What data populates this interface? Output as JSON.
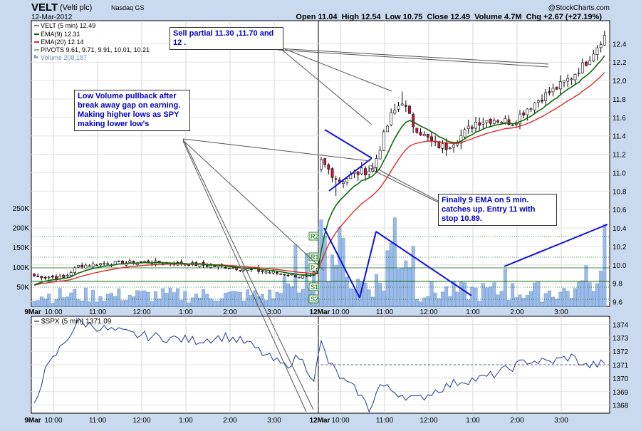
{
  "header": {
    "symbol": "VELT",
    "company": "(Velti plc)",
    "exchange": "Nasdaq GS",
    "date": "12-Mar-2012",
    "copyright": "@StockCharts.com",
    "ohlc_text": "Open 11.04  High 12.54  Low 10.75  Close 12.49  Volume 4.7M  Chg +2.67 (+27.19%)",
    "chg_arrow": "▲"
  },
  "legend": {
    "main": "VELT (5 min) 12.49",
    "ema9": "EMA(9) 12.31",
    "ema20": "EMA(20) 12.14",
    "pivots": "PIVOTS 9.61, 9.71, 9.91, 10.01, 10.21",
    "volume": "Volume 208,187"
  },
  "spx_label": "$SPX (5 min) 1371.09",
  "annotations": {
    "sell": "Sell partial 11.30 ,11.70 and 12 .",
    "pullback": "Low Volume pullback after break away gap on earning. Making higher lows as SPY making lower low's",
    "ema": "Finally 9 EMA on 5 min. catches up. Entry 11 with stop 10.89."
  },
  "colors": {
    "background": "#c9d9ee",
    "panel": "#ffffff",
    "up_candle": "#ffffff",
    "down_candle": "#d0143c",
    "ema9": "#0a6b0a",
    "ema20": "#e02828",
    "volume": "#9bbcea",
    "trendline": "#1010e0",
    "annotation_text": "#0000c8"
  },
  "chart_data": [
    {
      "type": "candlestick",
      "title": "VELT (5 min)",
      "ylim": [
        9.55,
        12.65
      ],
      "y_ticks": [
        "9.6",
        "9.8",
        "10.0",
        "10.2",
        "10.4",
        "10.6",
        "10.8",
        "11.0",
        "11.2",
        "11.4",
        "11.6",
        "11.8",
        "12.0",
        "12.2",
        "12.4"
      ],
      "x_ticks": [
        "9Mar",
        "10:00",
        "11:00",
        "12:00",
        "1:00",
        "2:00",
        "3:00",
        "12Mar",
        "10:00",
        "11:00",
        "12:00",
        "1:00",
        "2:00",
        "3:00"
      ],
      "pivot_labels": [
        "R2",
        "R1",
        "P",
        "S1",
        "S2"
      ],
      "pivots": [
        9.61,
        9.71,
        9.91,
        10.01,
        10.21
      ],
      "ema9_last": 12.31,
      "ema20_last": 12.14,
      "day1_close": 9.82,
      "day2_open": 11.04,
      "day2_high": 12.54,
      "day2_low": 10.75,
      "day2_close": 12.49
    },
    {
      "type": "bar",
      "title": "Volume",
      "y_ticks": [
        "250K",
        "200K",
        "150K",
        "100K",
        "50K"
      ],
      "ylim": [
        0,
        250000
      ],
      "last": 208187
    },
    {
      "type": "line",
      "title": "$SPX (5 min)",
      "ylim": [
        1367.4,
        1374.6
      ],
      "y_ticks": [
        "1374",
        "1373",
        "1372",
        "1371",
        "1370",
        "1369",
        "1368"
      ],
      "last": 1371.09,
      "reference": 1371
    }
  ]
}
